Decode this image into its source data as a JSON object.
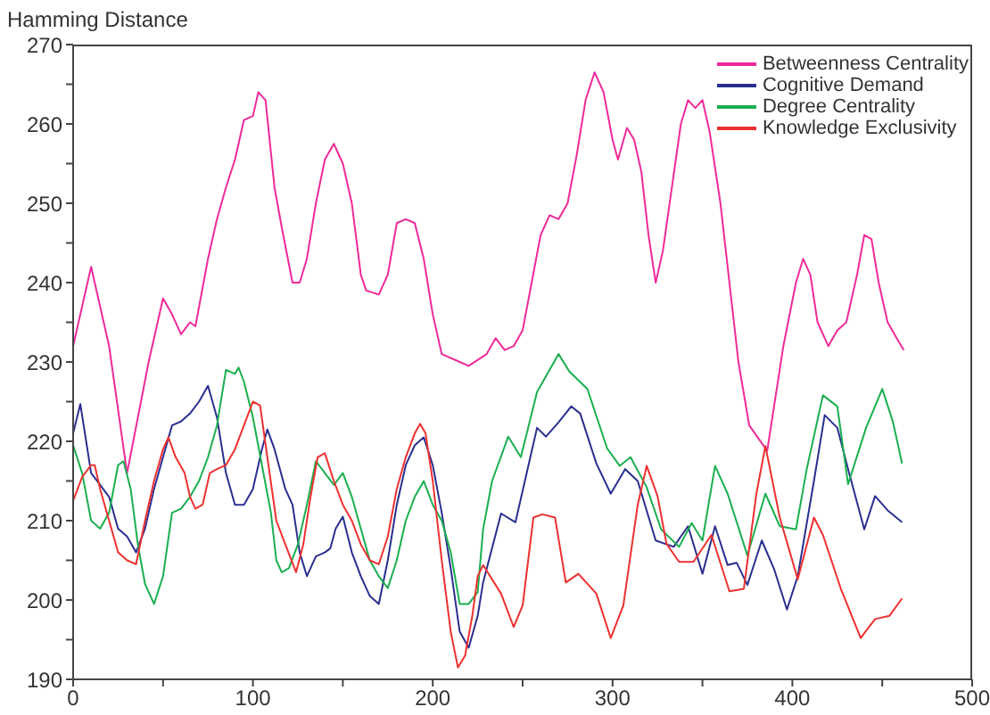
{
  "chart_data": {
    "type": "line",
    "ylabel": "Hamming Distance",
    "xlim": [
      0,
      500
    ],
    "xticks": [
      0,
      {
        "value": 50,
        "label": null
      },
      100,
      {
        "value": 150,
        "label": null
      },
      200,
      {
        "value": 250,
        "label": null
      },
      300,
      {
        "value": 350,
        "label": null
      },
      400,
      {
        "value": 450,
        "label": null
      },
      500
    ],
    "ylim": [
      190,
      270
    ],
    "yticks": [
      190,
      {
        "value": 195,
        "label": null
      },
      200,
      {
        "value": 205,
        "label": null
      },
      210,
      {
        "value": 215,
        "label": null
      },
      220,
      {
        "value": 225,
        "label": null
      },
      230,
      {
        "value": 235,
        "label": null
      },
      240,
      {
        "value": 245,
        "label": null
      },
      250,
      {
        "value": 255,
        "label": null
      },
      260,
      {
        "value": 265,
        "label": null
      },
      270
    ],
    "legend": "top right",
    "marker": "none",
    "line_style": "solid",
    "series": [
      {
        "name": "Betweenness Centrality",
        "color": "#ee2a9a",
        "x": [
          0,
          10,
          20,
          30,
          42,
          50,
          55,
          60,
          65,
          68,
          75,
          80,
          85,
          90,
          95,
          100,
          103,
          107,
          112,
          116,
          122,
          126,
          130,
          135,
          140,
          145,
          150,
          155,
          160,
          163,
          170,
          175,
          180,
          185,
          190,
          195,
          200,
          205,
          215,
          220,
          230,
          235,
          240,
          245,
          250,
          255,
          260,
          265,
          270,
          275,
          280,
          285,
          290,
          295,
          300,
          303,
          308,
          312,
          316,
          320,
          324,
          328,
          333,
          338,
          342,
          346,
          350,
          354,
          360,
          365,
          370,
          376,
          386,
          395,
          402,
          406,
          410,
          414,
          420,
          425,
          430,
          436,
          440,
          444,
          448,
          453,
          458,
          462
        ],
        "values": [
          232,
          242,
          232,
          216,
          230,
          238,
          236,
          233.5,
          235,
          234.5,
          243,
          248,
          252,
          255.5,
          260.5,
          261,
          264,
          263,
          252,
          247,
          240,
          240,
          243,
          250,
          255.5,
          257.5,
          255,
          250,
          241,
          239,
          238.5,
          241,
          247.5,
          248,
          247.5,
          243,
          236,
          231,
          230,
          229.5,
          231,
          233,
          231.5,
          232,
          234,
          240,
          246,
          248.5,
          248,
          250,
          256,
          263,
          266.5,
          264,
          258,
          255.5,
          259.5,
          258,
          254,
          246,
          240,
          244,
          252,
          260,
          263,
          262,
          263,
          259,
          250,
          240,
          230,
          222,
          218.8,
          232,
          240,
          243,
          241,
          235,
          232,
          234,
          235,
          241,
          246,
          245.5,
          240,
          235,
          233,
          231.5
        ]
      },
      {
        "name": "Cognitive Demand",
        "color": "#2a2f8f",
        "x": [
          0,
          4,
          10,
          15,
          20,
          25,
          30,
          35,
          40,
          45,
          50,
          55,
          60,
          65,
          70,
          75,
          80,
          85,
          90,
          95,
          100,
          105,
          108,
          112,
          118,
          122,
          126,
          130,
          135,
          140,
          143,
          146,
          150,
          155,
          160,
          165,
          170,
          175,
          180,
          185,
          190,
          195,
          200,
          205,
          210,
          215,
          220,
          225,
          228,
          238,
          246,
          258,
          263,
          270,
          277,
          282,
          291,
          299,
          307,
          314,
          324,
          334,
          342,
          350,
          357,
          364,
          369,
          375,
          383,
          390,
          397,
          403,
          412,
          418,
          425,
          431,
          440,
          446,
          453,
          461
        ],
        "values": [
          221,
          224.7,
          216,
          214.5,
          213,
          209,
          208,
          206,
          209,
          214,
          218,
          222,
          222.5,
          223.5,
          225,
          227,
          223,
          216,
          212,
          212,
          214,
          219,
          221.5,
          219,
          214,
          212,
          206,
          203,
          205.5,
          206,
          206.5,
          209,
          210.5,
          206,
          203,
          200.5,
          199.5,
          205,
          212,
          217,
          219.5,
          220.5,
          217,
          211,
          204,
          196,
          194,
          198,
          202.2,
          210.9,
          209.8,
          221.7,
          220.6,
          222.4,
          224.4,
          223.5,
          217.2,
          213.4,
          216.5,
          215,
          207.5,
          206.7,
          209.3,
          203.3,
          209.3,
          204.4,
          204.7,
          201.9,
          207.5,
          203.8,
          198.8,
          203,
          215,
          223.3,
          221.7,
          216.5,
          208.9,
          213.1,
          211.3,
          209.8
        ]
      },
      {
        "name": "Degree Centrality",
        "color": "#1aaf4f",
        "x": [
          0,
          5,
          10,
          15,
          20,
          25,
          28,
          32,
          36,
          40,
          45,
          50,
          55,
          60,
          65,
          70,
          75,
          80,
          85,
          90,
          92,
          95,
          100,
          105,
          110,
          113,
          116,
          120,
          125,
          130,
          135,
          140,
          145,
          150,
          155,
          160,
          165,
          170,
          175,
          180,
          185,
          190,
          195,
          200,
          205,
          210,
          215,
          220,
          225,
          228,
          233,
          242,
          249,
          258,
          270,
          276,
          286,
          297,
          304,
          310,
          319,
          327,
          337,
          344,
          350,
          357,
          364,
          375,
          385,
          393,
          402,
          408,
          417,
          425,
          431,
          441,
          450,
          456,
          461
        ],
        "values": [
          219.5,
          216,
          210,
          209,
          211,
          217,
          217.5,
          214,
          207,
          202,
          199.5,
          203,
          211,
          211.5,
          213,
          215,
          218,
          222,
          229,
          228.5,
          229.3,
          227.5,
          223,
          217,
          211,
          205,
          203.5,
          204,
          207,
          212,
          217.5,
          216,
          214.5,
          216,
          213,
          209,
          205,
          203,
          201.5,
          205,
          210,
          213,
          215,
          212,
          210,
          206,
          199.5,
          199.5,
          201,
          208.9,
          215,
          220.6,
          218,
          226.2,
          231,
          228.8,
          226.6,
          219.1,
          216.9,
          218,
          214.2,
          208.9,
          206.7,
          209.7,
          207.5,
          216.9,
          213.4,
          205.6,
          213.4,
          209.3,
          208.9,
          216.5,
          225.8,
          224.4,
          214.6,
          221.7,
          226.6,
          222.4,
          217.2
        ]
      },
      {
        "name": "Knowledge Exclusivity",
        "color": "#ee3030",
        "x": [
          0,
          5,
          10,
          12,
          15,
          20,
          25,
          30,
          35,
          40,
          45,
          50,
          53,
          57,
          62,
          65,
          68,
          72,
          76,
          80,
          85,
          90,
          95,
          100,
          104,
          108,
          113,
          118,
          124,
          128,
          132,
          136,
          140,
          145,
          150,
          155,
          160,
          165,
          170,
          175,
          180,
          185,
          190,
          193,
          196,
          200,
          205,
          210,
          214,
          218,
          222,
          225,
          228,
          238,
          245,
          250,
          256,
          261,
          268,
          274,
          281,
          291,
          299,
          306,
          314,
          319,
          325,
          330,
          337,
          345,
          355,
          365,
          373,
          380,
          385,
          393,
          403,
          412,
          417,
          427,
          438,
          446,
          454,
          461
        ],
        "values": [
          212.5,
          215.5,
          217,
          217,
          214,
          210,
          206,
          205,
          204.5,
          210,
          215,
          219,
          220.5,
          218,
          216,
          213,
          211.5,
          212,
          216,
          216.5,
          217,
          219,
          222,
          225,
          224.5,
          218,
          210,
          207,
          203.5,
          207,
          213,
          218,
          218.5,
          215,
          212,
          210,
          207,
          205,
          204.5,
          208,
          214,
          218,
          221,
          222.2,
          221,
          215,
          205,
          196,
          191.5,
          193,
          198,
          203,
          204.4,
          200.8,
          196.6,
          199.3,
          210.4,
          210.8,
          210.4,
          202.2,
          203.3,
          200.8,
          195.2,
          199.3,
          212,
          216.9,
          213.1,
          207.1,
          204.8,
          204.8,
          208.2,
          201.1,
          201.4,
          213.4,
          219.4,
          210.4,
          202.6,
          210.4,
          208.2,
          201.4,
          195.2,
          197.6,
          198,
          200.2
        ]
      }
    ]
  }
}
